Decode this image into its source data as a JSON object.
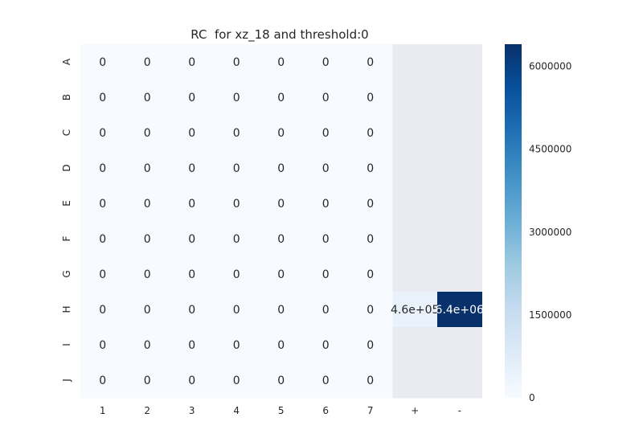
{
  "chart_data": {
    "type": "heatmap",
    "title": "RC  for xz_18 and threshold:0",
    "x_categories": [
      "1",
      "2",
      "3",
      "4",
      "5",
      "6",
      "7",
      "+",
      "-"
    ],
    "y_categories": [
      "A",
      "B",
      "C",
      "D",
      "E",
      "F",
      "G",
      "H",
      "I",
      "J"
    ],
    "values": [
      [
        0,
        0,
        0,
        0,
        0,
        0,
        0,
        null,
        null
      ],
      [
        0,
        0,
        0,
        0,
        0,
        0,
        0,
        null,
        null
      ],
      [
        0,
        0,
        0,
        0,
        0,
        0,
        0,
        null,
        null
      ],
      [
        0,
        0,
        0,
        0,
        0,
        0,
        0,
        null,
        null
      ],
      [
        0,
        0,
        0,
        0,
        0,
        0,
        0,
        null,
        null
      ],
      [
        0,
        0,
        0,
        0,
        0,
        0,
        0,
        null,
        null
      ],
      [
        0,
        0,
        0,
        0,
        0,
        0,
        0,
        null,
        null
      ],
      [
        0,
        0,
        0,
        0,
        0,
        0,
        0,
        460000,
        6400000
      ],
      [
        0,
        0,
        0,
        0,
        0,
        0,
        0,
        null,
        null
      ],
      [
        0,
        0,
        0,
        0,
        0,
        0,
        0,
        null,
        null
      ]
    ],
    "annotations": [
      [
        "0",
        "0",
        "0",
        "0",
        "0",
        "0",
        "0",
        "",
        ""
      ],
      [
        "0",
        "0",
        "0",
        "0",
        "0",
        "0",
        "0",
        "",
        ""
      ],
      [
        "0",
        "0",
        "0",
        "0",
        "0",
        "0",
        "0",
        "",
        ""
      ],
      [
        "0",
        "0",
        "0",
        "0",
        "0",
        "0",
        "0",
        "",
        ""
      ],
      [
        "0",
        "0",
        "0",
        "0",
        "0",
        "0",
        "0",
        "",
        ""
      ],
      [
        "0",
        "0",
        "0",
        "0",
        "0",
        "0",
        "0",
        "",
        ""
      ],
      [
        "0",
        "0",
        "0",
        "0",
        "0",
        "0",
        "0",
        "",
        ""
      ],
      [
        "0",
        "0",
        "0",
        "0",
        "0",
        "0",
        "0",
        "4.6e+05",
        "6.4e+06"
      ],
      [
        "0",
        "0",
        "0",
        "0",
        "0",
        "0",
        "0",
        "",
        ""
      ],
      [
        "0",
        "0",
        "0",
        "0",
        "0",
        "0",
        "0",
        "",
        ""
      ]
    ],
    "colorbar": {
      "min": 0,
      "max": 6400000,
      "ticks": [
        0,
        1500000,
        3000000,
        4500000,
        6000000
      ],
      "tick_labels": [
        "0",
        "1500000",
        "3000000",
        "4500000",
        "6000000"
      ],
      "colormap": "Blues"
    },
    "missing_color": "#eaeaf2",
    "grid": false,
    "xlabel": "",
    "ylabel": ""
  }
}
